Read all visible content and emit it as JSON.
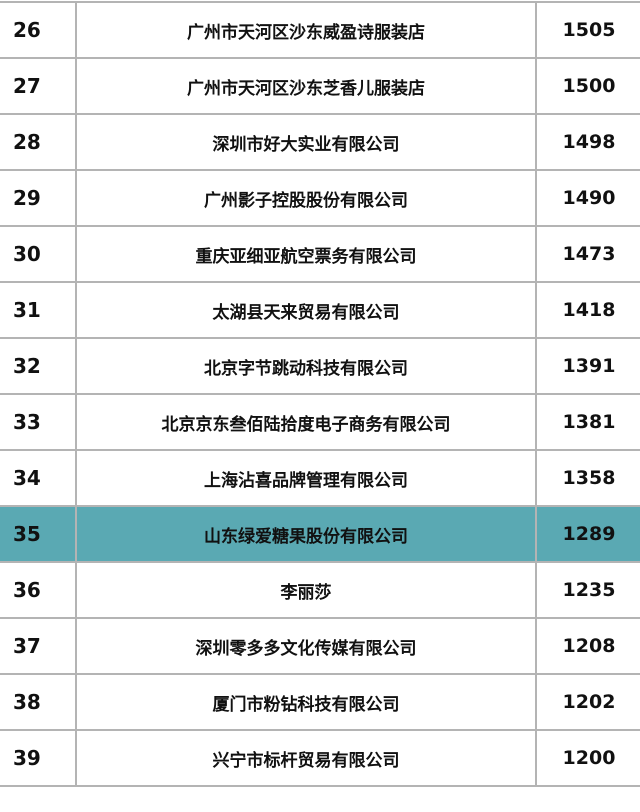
{
  "table": {
    "highlight_color": "#5aa9b3",
    "rows": [
      {
        "rank": "26",
        "name": "广州市天河区沙东威盈诗服装店",
        "value": "1505"
      },
      {
        "rank": "27",
        "name": "广州市天河区沙东芝香儿服装店",
        "value": "1500"
      },
      {
        "rank": "28",
        "name": "深圳市好大实业有限公司",
        "value": "1498"
      },
      {
        "rank": "29",
        "name": "广州影子控股股份有限公司",
        "value": "1490"
      },
      {
        "rank": "30",
        "name": "重庆亚细亚航空票务有限公司",
        "value": "1473"
      },
      {
        "rank": "31",
        "name": "太湖县天来贸易有限公司",
        "value": "1418"
      },
      {
        "rank": "32",
        "name": "北京字节跳动科技有限公司",
        "value": "1391"
      },
      {
        "rank": "33",
        "name": "北京京东叁佰陆拾度电子商务有限公司",
        "value": "1381"
      },
      {
        "rank": "34",
        "name": "上海沾喜品牌管理有限公司",
        "value": "1358"
      },
      {
        "rank": "35",
        "name": "山东绿爱糖果股份有限公司",
        "value": "1289",
        "highlighted": true
      },
      {
        "rank": "36",
        "name": "李丽莎",
        "value": "1235"
      },
      {
        "rank": "37",
        "name": "深圳零多多文化传媒有限公司",
        "value": "1208"
      },
      {
        "rank": "38",
        "name": "厦门市粉钻科技有限公司",
        "value": "1202"
      },
      {
        "rank": "39",
        "name": "兴宁市标杆贸易有限公司",
        "value": "1200"
      }
    ]
  }
}
